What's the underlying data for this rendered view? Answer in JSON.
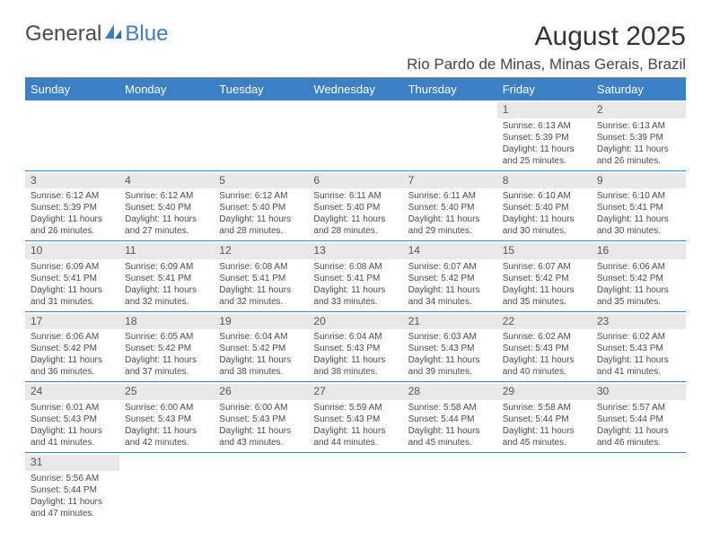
{
  "logo": {
    "text1": "General",
    "text2": "Blue"
  },
  "title": "August 2025",
  "location": "Rio Pardo de Minas, Minas Gerais, Brazil",
  "colors": {
    "header_bg": "#3b7fc4",
    "header_fg": "#ffffff",
    "daynum_bg": "#e8e8e8",
    "text": "#4a4a4a",
    "row_border": "#3b7fc4"
  },
  "weekdays": [
    "Sunday",
    "Monday",
    "Tuesday",
    "Wednesday",
    "Thursday",
    "Friday",
    "Saturday"
  ],
  "weeks": [
    [
      null,
      null,
      null,
      null,
      null,
      {
        "n": "1",
        "sr": "Sunrise: 6:13 AM",
        "ss": "Sunset: 5:39 PM",
        "d1": "Daylight: 11 hours",
        "d2": "and 25 minutes."
      },
      {
        "n": "2",
        "sr": "Sunrise: 6:13 AM",
        "ss": "Sunset: 5:39 PM",
        "d1": "Daylight: 11 hours",
        "d2": "and 26 minutes."
      }
    ],
    [
      {
        "n": "3",
        "sr": "Sunrise: 6:12 AM",
        "ss": "Sunset: 5:39 PM",
        "d1": "Daylight: 11 hours",
        "d2": "and 26 minutes."
      },
      {
        "n": "4",
        "sr": "Sunrise: 6:12 AM",
        "ss": "Sunset: 5:40 PM",
        "d1": "Daylight: 11 hours",
        "d2": "and 27 minutes."
      },
      {
        "n": "5",
        "sr": "Sunrise: 6:12 AM",
        "ss": "Sunset: 5:40 PM",
        "d1": "Daylight: 11 hours",
        "d2": "and 28 minutes."
      },
      {
        "n": "6",
        "sr": "Sunrise: 6:11 AM",
        "ss": "Sunset: 5:40 PM",
        "d1": "Daylight: 11 hours",
        "d2": "and 28 minutes."
      },
      {
        "n": "7",
        "sr": "Sunrise: 6:11 AM",
        "ss": "Sunset: 5:40 PM",
        "d1": "Daylight: 11 hours",
        "d2": "and 29 minutes."
      },
      {
        "n": "8",
        "sr": "Sunrise: 6:10 AM",
        "ss": "Sunset: 5:40 PM",
        "d1": "Daylight: 11 hours",
        "d2": "and 30 minutes."
      },
      {
        "n": "9",
        "sr": "Sunrise: 6:10 AM",
        "ss": "Sunset: 5:41 PM",
        "d1": "Daylight: 11 hours",
        "d2": "and 30 minutes."
      }
    ],
    [
      {
        "n": "10",
        "sr": "Sunrise: 6:09 AM",
        "ss": "Sunset: 5:41 PM",
        "d1": "Daylight: 11 hours",
        "d2": "and 31 minutes."
      },
      {
        "n": "11",
        "sr": "Sunrise: 6:09 AM",
        "ss": "Sunset: 5:41 PM",
        "d1": "Daylight: 11 hours",
        "d2": "and 32 minutes."
      },
      {
        "n": "12",
        "sr": "Sunrise: 6:08 AM",
        "ss": "Sunset: 5:41 PM",
        "d1": "Daylight: 11 hours",
        "d2": "and 32 minutes."
      },
      {
        "n": "13",
        "sr": "Sunrise: 6:08 AM",
        "ss": "Sunset: 5:41 PM",
        "d1": "Daylight: 11 hours",
        "d2": "and 33 minutes."
      },
      {
        "n": "14",
        "sr": "Sunrise: 6:07 AM",
        "ss": "Sunset: 5:42 PM",
        "d1": "Daylight: 11 hours",
        "d2": "and 34 minutes."
      },
      {
        "n": "15",
        "sr": "Sunrise: 6:07 AM",
        "ss": "Sunset: 5:42 PM",
        "d1": "Daylight: 11 hours",
        "d2": "and 35 minutes."
      },
      {
        "n": "16",
        "sr": "Sunrise: 6:06 AM",
        "ss": "Sunset: 5:42 PM",
        "d1": "Daylight: 11 hours",
        "d2": "and 35 minutes."
      }
    ],
    [
      {
        "n": "17",
        "sr": "Sunrise: 6:06 AM",
        "ss": "Sunset: 5:42 PM",
        "d1": "Daylight: 11 hours",
        "d2": "and 36 minutes."
      },
      {
        "n": "18",
        "sr": "Sunrise: 6:05 AM",
        "ss": "Sunset: 5:42 PM",
        "d1": "Daylight: 11 hours",
        "d2": "and 37 minutes."
      },
      {
        "n": "19",
        "sr": "Sunrise: 6:04 AM",
        "ss": "Sunset: 5:42 PM",
        "d1": "Daylight: 11 hours",
        "d2": "and 38 minutes."
      },
      {
        "n": "20",
        "sr": "Sunrise: 6:04 AM",
        "ss": "Sunset: 5:43 PM",
        "d1": "Daylight: 11 hours",
        "d2": "and 38 minutes."
      },
      {
        "n": "21",
        "sr": "Sunrise: 6:03 AM",
        "ss": "Sunset: 5:43 PM",
        "d1": "Daylight: 11 hours",
        "d2": "and 39 minutes."
      },
      {
        "n": "22",
        "sr": "Sunrise: 6:02 AM",
        "ss": "Sunset: 5:43 PM",
        "d1": "Daylight: 11 hours",
        "d2": "and 40 minutes."
      },
      {
        "n": "23",
        "sr": "Sunrise: 6:02 AM",
        "ss": "Sunset: 5:43 PM",
        "d1": "Daylight: 11 hours",
        "d2": "and 41 minutes."
      }
    ],
    [
      {
        "n": "24",
        "sr": "Sunrise: 6:01 AM",
        "ss": "Sunset: 5:43 PM",
        "d1": "Daylight: 11 hours",
        "d2": "and 41 minutes."
      },
      {
        "n": "25",
        "sr": "Sunrise: 6:00 AM",
        "ss": "Sunset: 5:43 PM",
        "d1": "Daylight: 11 hours",
        "d2": "and 42 minutes."
      },
      {
        "n": "26",
        "sr": "Sunrise: 6:00 AM",
        "ss": "Sunset: 5:43 PM",
        "d1": "Daylight: 11 hours",
        "d2": "and 43 minutes."
      },
      {
        "n": "27",
        "sr": "Sunrise: 5:59 AM",
        "ss": "Sunset: 5:43 PM",
        "d1": "Daylight: 11 hours",
        "d2": "and 44 minutes."
      },
      {
        "n": "28",
        "sr": "Sunrise: 5:58 AM",
        "ss": "Sunset: 5:44 PM",
        "d1": "Daylight: 11 hours",
        "d2": "and 45 minutes."
      },
      {
        "n": "29",
        "sr": "Sunrise: 5:58 AM",
        "ss": "Sunset: 5:44 PM",
        "d1": "Daylight: 11 hours",
        "d2": "and 45 minutes."
      },
      {
        "n": "30",
        "sr": "Sunrise: 5:57 AM",
        "ss": "Sunset: 5:44 PM",
        "d1": "Daylight: 11 hours",
        "d2": "and 46 minutes."
      }
    ],
    [
      {
        "n": "31",
        "sr": "Sunrise: 5:56 AM",
        "ss": "Sunset: 5:44 PM",
        "d1": "Daylight: 11 hours",
        "d2": "and 47 minutes."
      },
      null,
      null,
      null,
      null,
      null,
      null
    ]
  ]
}
